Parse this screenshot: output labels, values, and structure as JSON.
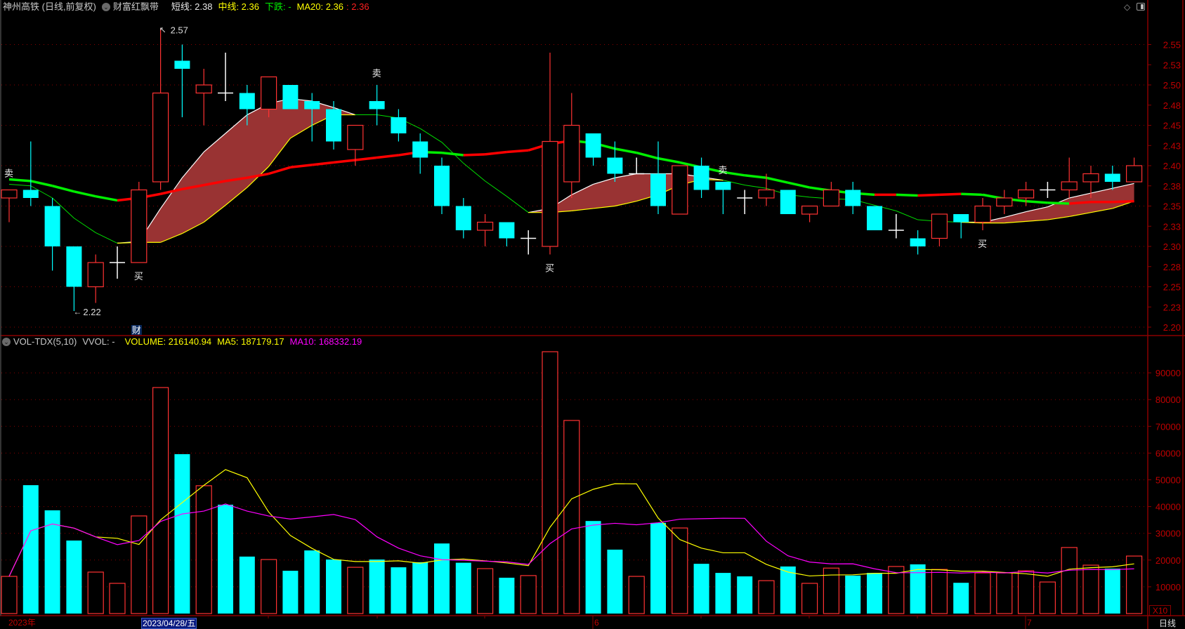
{
  "header": {
    "title": "神州高铁 (日线,前复权)",
    "indicator_name": "财富红飘带",
    "short_line": "短线: 2.38",
    "mid_line": "中线: 2.36",
    "trend": "下跌: -",
    "ma20": "MA20: 2.36",
    "ma20_red": ": 2.36"
  },
  "volume_header": {
    "name": "VOL-TDX(5,10)",
    "vvol": "VVOL: -",
    "volume": "VOLUME: 216140.94",
    "ma5": "MA5: 187179.17",
    "ma10": "MA10: 168332.19"
  },
  "volume_axis_multiplier": "X10",
  "period_label": "日线",
  "date_axis": {
    "year_label": "2023年",
    "cursor_date": "2023/04/28/五",
    "month_labels": [
      "6",
      "7"
    ]
  },
  "price_axis_labels": [
    "2.55",
    "2.53",
    "2.50",
    "2.48",
    "2.45",
    "2.43",
    "2.40",
    "2.38",
    "2.35",
    "2.33",
    "2.30",
    "2.28",
    "2.25",
    "2.23",
    "2.20"
  ],
  "volume_axis_labels": [
    "90000",
    "80000",
    "70000",
    "60000",
    "50000",
    "40000",
    "30000",
    "20000",
    "10000"
  ],
  "annotations": {
    "high_label": "2.57",
    "low_label": "2.22",
    "fin_marker": "财",
    "buy": "买",
    "sell": "卖"
  },
  "colors": {
    "up": "#ff3232",
    "down": "#00ffff",
    "doji": "#ffffff",
    "ribbon": "#993333",
    "ma20_up": "#ff0000",
    "ma20_down": "#00ee00",
    "vol_ma5": "#ffff00",
    "vol_ma10": "#ff00ff",
    "axis": "#c00000"
  },
  "chart_data": {
    "type": "candlestick",
    "price_range": [
      2.2,
      2.55
    ],
    "volume_range": [
      0,
      100000
    ],
    "ohlc": [
      [
        2.36,
        2.37,
        2.33,
        2.37
      ],
      [
        2.37,
        2.43,
        2.35,
        2.36
      ],
      [
        2.35,
        2.36,
        2.27,
        2.3
      ],
      [
        2.3,
        2.3,
        2.22,
        2.25
      ],
      [
        2.25,
        2.29,
        2.23,
        2.28
      ],
      [
        2.28,
        2.3,
        2.26,
        2.28
      ],
      [
        2.28,
        2.38,
        2.28,
        2.37
      ],
      [
        2.38,
        2.57,
        2.37,
        2.49
      ],
      [
        2.53,
        2.55,
        2.46,
        2.52
      ],
      [
        2.49,
        2.52,
        2.45,
        2.5
      ],
      [
        2.49,
        2.54,
        2.48,
        2.49
      ],
      [
        2.49,
        2.5,
        2.45,
        2.47
      ],
      [
        2.47,
        2.51,
        2.46,
        2.51
      ],
      [
        2.5,
        2.5,
        2.47,
        2.47
      ],
      [
        2.48,
        2.49,
        2.43,
        2.47
      ],
      [
        2.47,
        2.48,
        2.42,
        2.43
      ],
      [
        2.42,
        2.45,
        2.4,
        2.45
      ],
      [
        2.48,
        2.5,
        2.45,
        2.47
      ],
      [
        2.46,
        2.47,
        2.43,
        2.44
      ],
      [
        2.43,
        2.44,
        2.39,
        2.41
      ],
      [
        2.4,
        2.41,
        2.34,
        2.35
      ],
      [
        2.35,
        2.36,
        2.31,
        2.32
      ],
      [
        2.32,
        2.34,
        2.3,
        2.33
      ],
      [
        2.33,
        2.33,
        2.3,
        2.31
      ],
      [
        2.31,
        2.32,
        2.29,
        2.31
      ],
      [
        2.3,
        2.54,
        2.29,
        2.43
      ],
      [
        2.38,
        2.49,
        2.36,
        2.45
      ],
      [
        2.44,
        2.44,
        2.4,
        2.41
      ],
      [
        2.41,
        2.43,
        2.38,
        2.39
      ],
      [
        2.39,
        2.41,
        2.39,
        2.39
      ],
      [
        2.39,
        2.43,
        2.34,
        2.35
      ],
      [
        2.34,
        2.4,
        2.34,
        2.4
      ],
      [
        2.4,
        2.41,
        2.36,
        2.37
      ],
      [
        2.38,
        2.38,
        2.34,
        2.37
      ],
      [
        2.36,
        2.37,
        2.34,
        2.36
      ],
      [
        2.36,
        2.39,
        2.35,
        2.37
      ],
      [
        2.37,
        2.37,
        2.34,
        2.34
      ],
      [
        2.34,
        2.35,
        2.33,
        2.35
      ],
      [
        2.35,
        2.38,
        2.35,
        2.37
      ],
      [
        2.37,
        2.38,
        2.34,
        2.35
      ],
      [
        2.35,
        2.35,
        2.32,
        2.32
      ],
      [
        2.32,
        2.34,
        2.31,
        2.32
      ],
      [
        2.31,
        2.32,
        2.29,
        2.3
      ],
      [
        2.31,
        2.34,
        2.3,
        2.34
      ],
      [
        2.34,
        2.34,
        2.31,
        2.33
      ],
      [
        2.33,
        2.36,
        2.32,
        2.35
      ],
      [
        2.35,
        2.37,
        2.34,
        2.36
      ],
      [
        2.36,
        2.38,
        2.35,
        2.37
      ],
      [
        2.37,
        2.38,
        2.36,
        2.37
      ],
      [
        2.37,
        2.41,
        2.36,
        2.38
      ],
      [
        2.38,
        2.4,
        2.36,
        2.39
      ],
      [
        2.39,
        2.4,
        2.37,
        2.38
      ],
      [
        2.38,
        2.41,
        2.38,
        2.4
      ]
    ],
    "short_line": [
      2.377,
      2.375,
      2.36,
      2.335,
      2.317,
      2.304,
      2.306,
      2.347,
      2.385,
      2.417,
      2.44,
      2.463,
      2.477,
      2.483,
      2.48,
      2.472,
      2.463,
      2.463,
      2.459,
      2.446,
      2.429,
      2.403,
      2.381,
      2.362,
      2.342,
      2.347,
      2.364,
      2.377,
      2.385,
      2.39,
      2.39,
      2.39,
      2.386,
      2.382,
      2.376,
      2.372,
      2.364,
      2.361,
      2.359,
      2.358,
      2.351,
      2.344,
      2.333,
      2.331,
      2.33,
      2.33,
      2.336,
      2.343,
      2.349,
      2.36,
      2.366,
      2.372,
      2.378
    ],
    "mid_line": [
      2.377,
      2.375,
      2.36,
      2.335,
      2.317,
      2.304,
      2.305,
      2.305,
      2.316,
      2.33,
      2.351,
      2.373,
      2.399,
      2.434,
      2.45,
      2.463,
      2.463,
      2.463,
      2.459,
      2.446,
      2.429,
      2.403,
      2.381,
      2.362,
      2.342,
      2.342,
      2.344,
      2.347,
      2.35,
      2.356,
      2.364,
      2.376,
      2.383,
      2.382,
      2.376,
      2.372,
      2.364,
      2.361,
      2.359,
      2.358,
      2.351,
      2.344,
      2.333,
      2.331,
      2.33,
      2.329,
      2.329,
      2.331,
      2.333,
      2.337,
      2.342,
      2.347,
      2.356
    ],
    "ma20": [
      2.383,
      2.381,
      2.375,
      2.368,
      2.362,
      2.357,
      2.36,
      2.365,
      2.371,
      2.376,
      2.381,
      2.385,
      2.39,
      2.398,
      2.401,
      2.404,
      2.407,
      2.41,
      2.413,
      2.417,
      2.416,
      2.413,
      2.414,
      2.417,
      2.419,
      2.427,
      2.431,
      2.428,
      2.421,
      2.416,
      2.409,
      2.404,
      2.398,
      2.392,
      2.388,
      2.385,
      2.379,
      2.373,
      2.369,
      2.366,
      2.364,
      2.364,
      2.363,
      2.364,
      2.365,
      2.364,
      2.359,
      2.356,
      2.354,
      2.353,
      2.355,
      2.355,
      2.356
    ],
    "volume": [
      13900,
      48000,
      38600,
      27300,
      15500,
      11300,
      36500,
      84500,
      59600,
      47800,
      40700,
      21300,
      20200,
      16000,
      23600,
      20200,
      17300,
      20200,
      17300,
      19200,
      26200,
      19000,
      16800,
      13400,
      14200,
      97900,
      72200,
      34600,
      23900,
      13900,
      33900,
      32000,
      18600,
      15200,
      13900,
      12300,
      17600,
      11300,
      17000,
      14200,
      15200,
      17600,
      18400,
      16500,
      11500,
      15200,
      15200,
      16000,
      11800,
      24700,
      18100,
      16800,
      21500
    ],
    "volume_up_indices": [
      0,
      4,
      5,
      6,
      7,
      9,
      12,
      16,
      22,
      24,
      25,
      26,
      29,
      31,
      35,
      37,
      38,
      41,
      43,
      45,
      46,
      47,
      48,
      49,
      50,
      52
    ],
    "high_point_index": 7,
    "low_point_index": 3,
    "fin_marker_index": 6,
    "buy_signal_indices": [
      6,
      25,
      45
    ],
    "sell_signal_indices": [
      0,
      17,
      33
    ],
    "cursor_index": 6
  }
}
